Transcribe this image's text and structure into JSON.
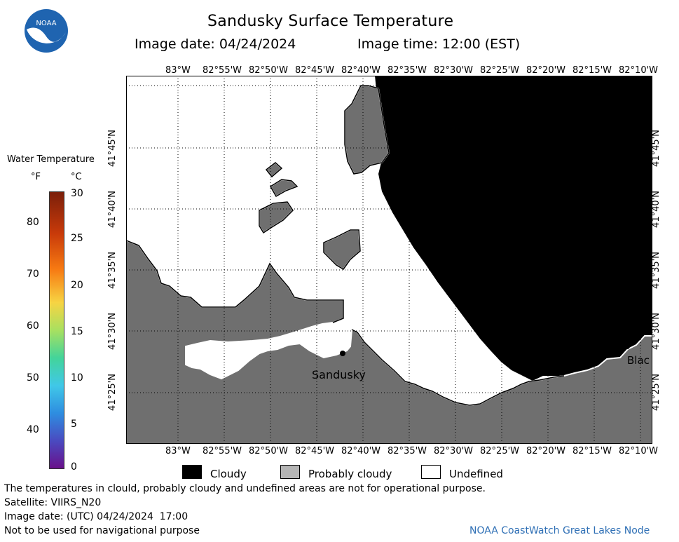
{
  "header": {
    "title": "Sandusky Surface Temperature",
    "image_date_label": "Image date: 04/24/2024",
    "image_time_label": "Image time: 12:00 (EST)"
  },
  "logo": {
    "text": "NOAA"
  },
  "colorbar": {
    "title": "Water Temperature",
    "unit_f": "°F",
    "unit_c": "°C",
    "f_ticks": [
      "80",
      "70",
      "60",
      "50",
      "40"
    ],
    "c_ticks": [
      "30",
      "25",
      "20",
      "15",
      "10",
      "5",
      "0"
    ]
  },
  "map": {
    "lon_labels": [
      "83°W",
      "82°55'W",
      "82°50'W",
      "82°45'W",
      "82°40'W",
      "82°35'W",
      "82°30'W",
      "82°25'W",
      "82°20'W",
      "82°15'W",
      "82°10'W"
    ],
    "lat_labels": [
      "41°45'N",
      "41°40'N",
      "41°35'N",
      "41°30'N",
      "41°25'N"
    ],
    "places": [
      {
        "name": "Sandusky"
      },
      {
        "name": "Blac"
      }
    ],
    "colors": {
      "cloudy": "#000000",
      "probably_cloudy": "#6f6f6f",
      "undefined": "#ffffff"
    }
  },
  "legend": {
    "cloudy": "Cloudy",
    "probably_cloudy": "Probably cloudy",
    "undefined": "Undefined"
  },
  "footer": {
    "disclaimer": "The temperatures in clould, probably cloudy and undefined areas are not for operational purpose.",
    "satellite": "Satellite: VIIRS_N20",
    "image_date_utc": "Image date: (UTC) 04/24/2024  17:00",
    "nav_warning": "Not to be used for navigational purpose",
    "credit": "NOAA CoastWatch Great Lakes Node"
  }
}
